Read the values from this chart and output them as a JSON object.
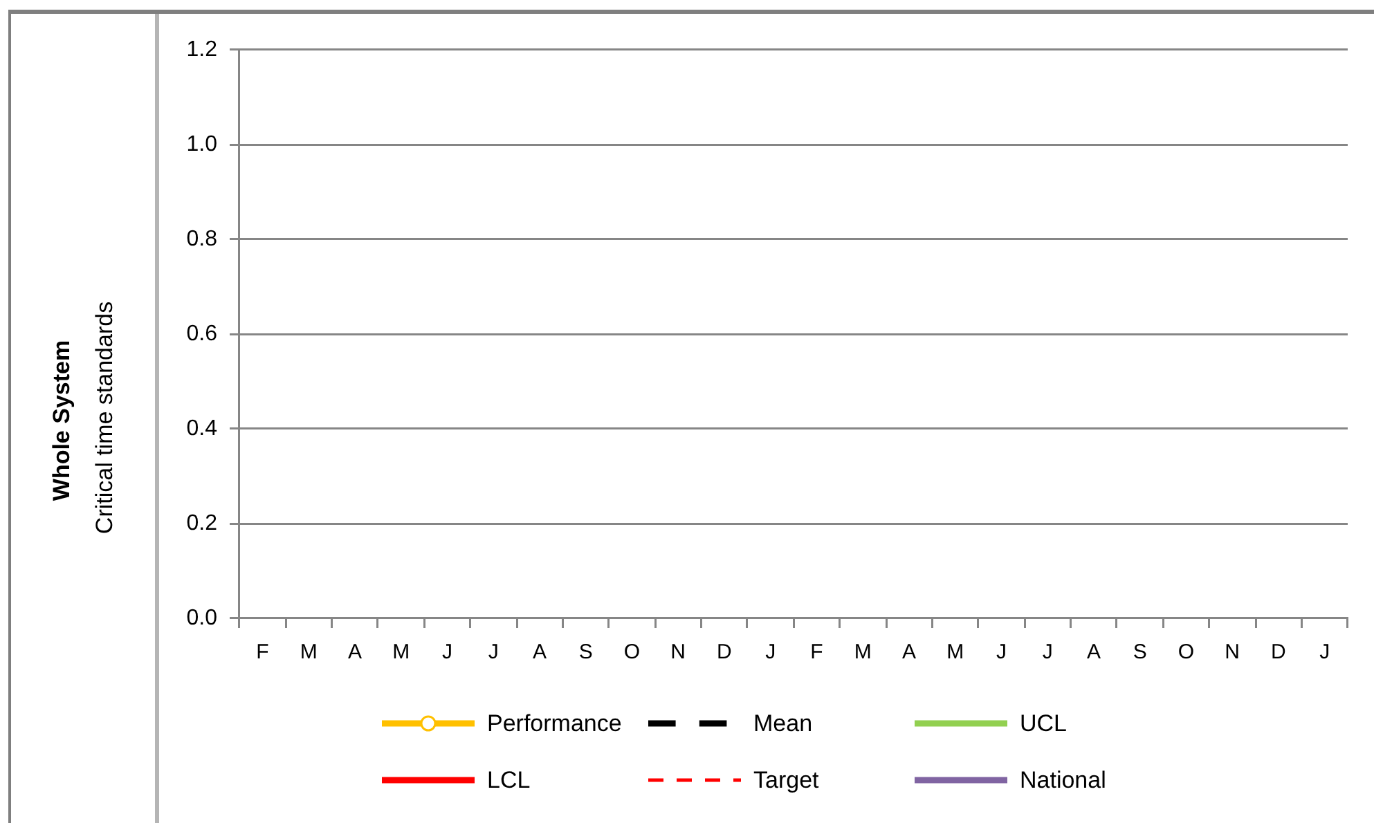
{
  "chart_data": {
    "type": "line",
    "title": "Whole System",
    "ylabel": "Critical time standards",
    "categories": [
      "F",
      "M",
      "A",
      "M",
      "J",
      "J",
      "A",
      "S",
      "O",
      "N",
      "D",
      "J",
      "F",
      "M",
      "A",
      "M",
      "J",
      "J",
      "A",
      "S",
      "O",
      "N",
      "D",
      "J"
    ],
    "series": [
      {
        "name": "Performance",
        "color": "#ffc000",
        "marker": "circle",
        "values": [
          null,
          null,
          null,
          null,
          null,
          null,
          null,
          null,
          null,
          null,
          null,
          null,
          null,
          null,
          null,
          null,
          null,
          null,
          null,
          null,
          null,
          null,
          null,
          null
        ]
      },
      {
        "name": "Mean",
        "color": "#000000",
        "line_style": "dashed",
        "values": [
          null,
          null,
          null,
          null,
          null,
          null,
          null,
          null,
          null,
          null,
          null,
          null,
          null,
          null,
          null,
          null,
          null,
          null,
          null,
          null,
          null,
          null,
          null,
          null
        ]
      },
      {
        "name": "UCL",
        "color": "#92d050",
        "values": [
          null,
          null,
          null,
          null,
          null,
          null,
          null,
          null,
          null,
          null,
          null,
          null,
          null,
          null,
          null,
          null,
          null,
          null,
          null,
          null,
          null,
          null,
          null,
          null
        ]
      },
      {
        "name": "LCL",
        "color": "#ff0000",
        "values": [
          null,
          null,
          null,
          null,
          null,
          null,
          null,
          null,
          null,
          null,
          null,
          null,
          null,
          null,
          null,
          null,
          null,
          null,
          null,
          null,
          null,
          null,
          null,
          null
        ]
      },
      {
        "name": "Target",
        "color": "#ff0000",
        "line_style": "dashed",
        "values": [
          null,
          null,
          null,
          null,
          null,
          null,
          null,
          null,
          null,
          null,
          null,
          null,
          null,
          null,
          null,
          null,
          null,
          null,
          null,
          null,
          null,
          null,
          null,
          null
        ]
      },
      {
        "name": "National",
        "color": "#8064a2",
        "values": [
          null,
          null,
          null,
          null,
          null,
          null,
          null,
          null,
          null,
          null,
          null,
          null,
          null,
          null,
          null,
          null,
          null,
          null,
          null,
          null,
          null,
          null,
          null,
          null
        ]
      }
    ],
    "ylim": [
      0,
      1.2
    ],
    "yticks": [
      {
        "value": 0,
        "label": "0.0"
      },
      0.2,
      0.4,
      0.6,
      0.8,
      {
        "value": 1,
        "label": "1.0"
      },
      1.2
    ],
    "grid": "y",
    "legend": "bottom"
  }
}
